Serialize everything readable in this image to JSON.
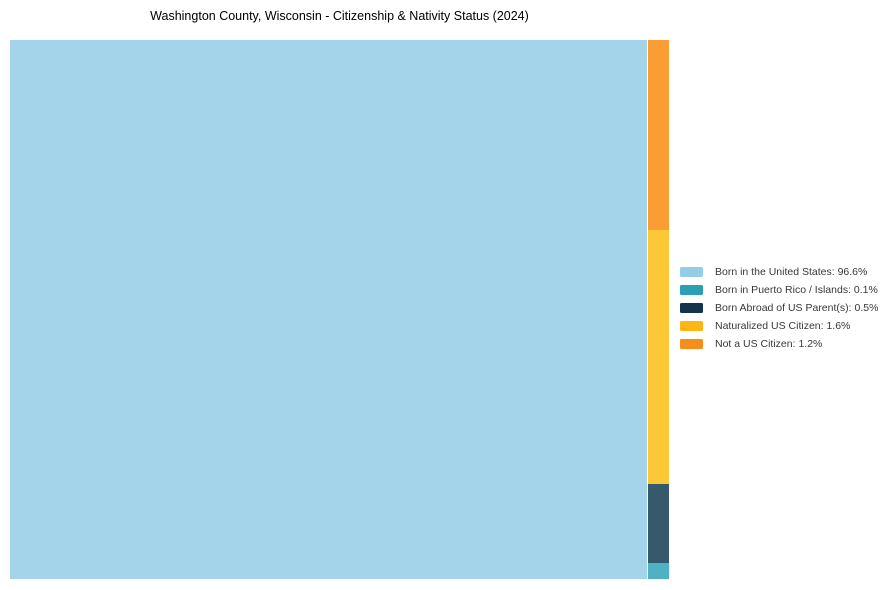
{
  "page": {
    "background_color": "#ffffff"
  },
  "chart_data": {
    "type": "treemap",
    "title": "Washington County, Wisconsin - Citizenship & Nativity Status (2024)",
    "unit": "%",
    "legend_position": "right-center",
    "layout_hint": "slice-and-dice: largest segment fills full-height left tile; remaining segments stacked in narrow right column, top-to-bottom in reverse legend order (Not a US Citizen on top, Born in Puerto Rico / Islands at bottom)",
    "segments": [
      {
        "label": "Born in the United States",
        "value": 96.6,
        "tile_color": "#a3d4ea",
        "legend_color": "#94cde8"
      },
      {
        "label": "Born in Puerto Rico / Islands",
        "value": 0.1,
        "tile_color": "#4fb1c4",
        "legend_color": "#2b9fb3"
      },
      {
        "label": "Born Abroad of US Parent(s)",
        "value": 0.5,
        "tile_color": "#36596c",
        "legend_color": "#14344c"
      },
      {
        "label": "Naturalized US Citizen",
        "value": 1.6,
        "tile_color": "#fdc838",
        "legend_color": "#fdb714"
      },
      {
        "label": "Not a US Citizen",
        "value": 1.2,
        "tile_color": "#fa9e33",
        "legend_color": "#f78d1b"
      }
    ]
  }
}
